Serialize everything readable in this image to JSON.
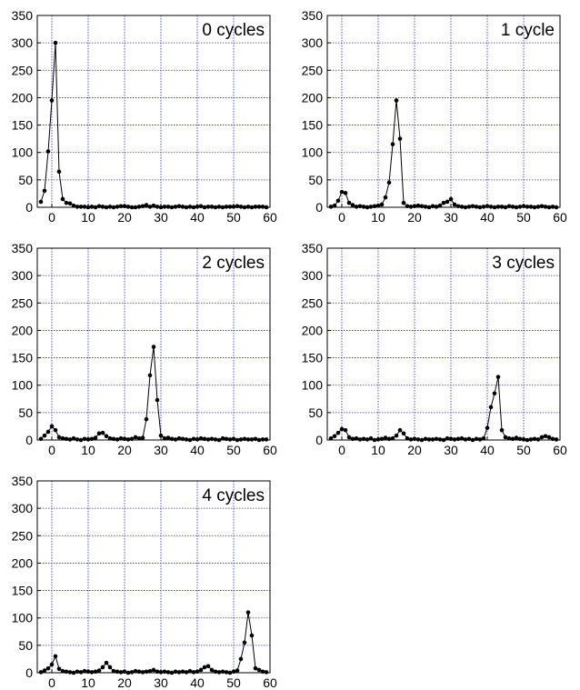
{
  "chart_data": [
    {
      "type": "line",
      "title": "0 cycles",
      "xlabel": "",
      "ylabel": "",
      "xlim": [
        -4,
        60
      ],
      "ylim": [
        0,
        350
      ],
      "xticks": [
        0,
        10,
        20,
        30,
        40,
        50,
        60
      ],
      "yticks": [
        0,
        50,
        100,
        150,
        200,
        250,
        300,
        350
      ],
      "grid": true,
      "series": [
        {
          "x": [
            -3,
            -2,
            -1,
            0,
            1,
            2,
            3,
            4,
            5,
            6,
            7,
            8,
            9,
            10,
            11,
            12,
            13,
            14,
            15,
            16,
            17,
            18,
            19,
            20,
            21,
            22,
            23,
            24,
            25,
            26,
            27,
            28,
            29,
            30,
            31,
            32,
            33,
            34,
            35,
            36,
            37,
            38,
            39,
            40,
            41,
            42,
            43,
            44,
            45,
            46,
            47,
            48,
            49,
            50,
            51,
            52,
            53,
            54,
            55,
            56,
            57,
            58,
            59
          ],
          "y": [
            10,
            30,
            102,
            195,
            300,
            65,
            15,
            8,
            7,
            3,
            1,
            1,
            1,
            0,
            1,
            0,
            2,
            1,
            0,
            1,
            0,
            1,
            2,
            2,
            1,
            0,
            0,
            1,
            2,
            4,
            1,
            3,
            1,
            0,
            1,
            1,
            0,
            1,
            2,
            1,
            0,
            1,
            0,
            1,
            2,
            0,
            1,
            1,
            0,
            1,
            0,
            1,
            1,
            1,
            2,
            1,
            0,
            1,
            0,
            1,
            1,
            1,
            0
          ]
        }
      ]
    },
    {
      "type": "line",
      "title": "1 cycle",
      "xlabel": "",
      "ylabel": "",
      "xlim": [
        -4,
        60
      ],
      "ylim": [
        0,
        350
      ],
      "xticks": [
        0,
        10,
        20,
        30,
        40,
        50,
        60
      ],
      "yticks": [
        0,
        50,
        100,
        150,
        200,
        250,
        300,
        350
      ],
      "grid": true,
      "series": [
        {
          "x": [
            -3,
            -2,
            -1,
            0,
            1,
            2,
            3,
            4,
            5,
            6,
            7,
            8,
            9,
            10,
            11,
            12,
            13,
            14,
            15,
            16,
            17,
            18,
            19,
            20,
            21,
            22,
            23,
            24,
            25,
            26,
            27,
            28,
            29,
            30,
            31,
            32,
            33,
            34,
            35,
            36,
            37,
            38,
            39,
            40,
            41,
            42,
            43,
            44,
            45,
            46,
            47,
            48,
            49,
            50,
            51,
            52,
            53,
            54,
            55,
            56,
            57,
            58,
            59
          ],
          "y": [
            1,
            3,
            12,
            28,
            26,
            8,
            4,
            1,
            2,
            1,
            0,
            1,
            2,
            3,
            5,
            18,
            45,
            115,
            195,
            125,
            8,
            2,
            1,
            2,
            3,
            2,
            1,
            0,
            2,
            1,
            3,
            8,
            10,
            15,
            5,
            2,
            1,
            0,
            1,
            2,
            1,
            0,
            1,
            2,
            1,
            0,
            1,
            1,
            0,
            2,
            1,
            0,
            1,
            2,
            1,
            1,
            0,
            1,
            2,
            1,
            0,
            1,
            0
          ]
        }
      ]
    },
    {
      "type": "line",
      "title": "2 cycles",
      "xlabel": "",
      "ylabel": "",
      "xlim": [
        -4,
        60
      ],
      "ylim": [
        0,
        350
      ],
      "xticks": [
        0,
        10,
        20,
        30,
        40,
        50,
        60
      ],
      "yticks": [
        0,
        50,
        100,
        150,
        200,
        250,
        300,
        350
      ],
      "grid": true,
      "series": [
        {
          "x": [
            -3,
            -2,
            -1,
            0,
            1,
            2,
            3,
            4,
            5,
            6,
            7,
            8,
            9,
            10,
            11,
            12,
            13,
            14,
            15,
            16,
            17,
            18,
            19,
            20,
            21,
            22,
            23,
            24,
            25,
            26,
            27,
            28,
            29,
            30,
            31,
            32,
            33,
            34,
            35,
            36,
            37,
            38,
            39,
            40,
            41,
            42,
            43,
            44,
            45,
            46,
            47,
            48,
            49,
            50,
            51,
            52,
            53,
            54,
            55,
            56,
            57,
            58,
            59
          ],
          "y": [
            2,
            8,
            15,
            25,
            18,
            5,
            3,
            2,
            1,
            3,
            1,
            0,
            2,
            1,
            2,
            4,
            12,
            13,
            7,
            3,
            2,
            1,
            3,
            2,
            1,
            2,
            5,
            3,
            4,
            38,
            118,
            170,
            73,
            8,
            3,
            4,
            2,
            1,
            3,
            2,
            1,
            0,
            2,
            1,
            3,
            2,
            1,
            2,
            1,
            0,
            3,
            2,
            1,
            2,
            0,
            1,
            2,
            1,
            1,
            2,
            0,
            1,
            1
          ]
        }
      ]
    },
    {
      "type": "line",
      "title": "3 cycles",
      "xlabel": "",
      "ylabel": "",
      "xlim": [
        -4,
        60
      ],
      "ylim": [
        0,
        350
      ],
      "xticks": [
        0,
        10,
        20,
        30,
        40,
        50,
        60
      ],
      "yticks": [
        0,
        50,
        100,
        150,
        200,
        250,
        300,
        350
      ],
      "grid": true,
      "series": [
        {
          "x": [
            -3,
            -2,
            -1,
            0,
            1,
            2,
            3,
            4,
            5,
            6,
            7,
            8,
            9,
            10,
            11,
            12,
            13,
            14,
            15,
            16,
            17,
            18,
            19,
            20,
            21,
            22,
            23,
            24,
            25,
            26,
            27,
            28,
            29,
            30,
            31,
            32,
            33,
            34,
            35,
            36,
            37,
            38,
            39,
            40,
            41,
            42,
            43,
            44,
            45,
            46,
            47,
            48,
            49,
            50,
            51,
            52,
            53,
            54,
            55,
            56,
            57,
            58,
            59
          ],
          "y": [
            3,
            7,
            13,
            20,
            18,
            5,
            2,
            3,
            1,
            2,
            1,
            3,
            0,
            1,
            2,
            4,
            2,
            3,
            8,
            18,
            12,
            3,
            1,
            2,
            1,
            0,
            2,
            1,
            1,
            2,
            1,
            0,
            3,
            2,
            1,
            2,
            3,
            1,
            2,
            0,
            2,
            1,
            3,
            22,
            60,
            85,
            115,
            18,
            5,
            3,
            2,
            4,
            2,
            1,
            0,
            1,
            2,
            1,
            5,
            7,
            5,
            2,
            1
          ]
        }
      ]
    },
    {
      "type": "line",
      "title": "4 cycles",
      "xlabel": "",
      "ylabel": "",
      "xlim": [
        -4,
        60
      ],
      "ylim": [
        0,
        350
      ],
      "xticks": [
        0,
        10,
        20,
        30,
        40,
        50,
        60
      ],
      "yticks": [
        0,
        50,
        100,
        150,
        200,
        250,
        300,
        350
      ],
      "grid": true,
      "series": [
        {
          "x": [
            -3,
            -2,
            -1,
            0,
            1,
            2,
            3,
            4,
            5,
            6,
            7,
            8,
            9,
            10,
            11,
            12,
            13,
            14,
            15,
            16,
            17,
            18,
            19,
            20,
            21,
            22,
            23,
            24,
            25,
            26,
            27,
            28,
            29,
            30,
            31,
            32,
            33,
            34,
            35,
            36,
            37,
            38,
            39,
            40,
            41,
            42,
            43,
            44,
            45,
            46,
            47,
            48,
            49,
            50,
            51,
            52,
            53,
            54,
            55,
            56,
            57,
            58,
            59
          ],
          "y": [
            1,
            4,
            8,
            15,
            30,
            7,
            3,
            2,
            1,
            0,
            2,
            1,
            3,
            2,
            1,
            2,
            4,
            10,
            18,
            10,
            3,
            2,
            1,
            2,
            0,
            1,
            3,
            2,
            1,
            2,
            3,
            5,
            2,
            1,
            2,
            1,
            0,
            2,
            1,
            2,
            1,
            3,
            1,
            2,
            5,
            10,
            12,
            5,
            2,
            1,
            2,
            1,
            0,
            2,
            4,
            25,
            55,
            110,
            68,
            8,
            5,
            2,
            1
          ]
        }
      ]
    }
  ]
}
